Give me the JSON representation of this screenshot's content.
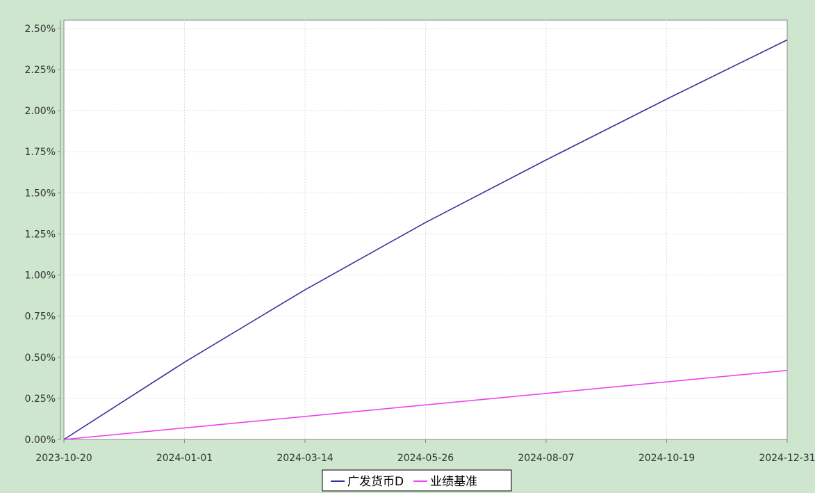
{
  "chart_data": {
    "type": "line",
    "title": "",
    "xlabel": "",
    "ylabel": "",
    "x_ticks": [
      "2023-10-20",
      "2024-01-01",
      "2024-03-14",
      "2024-05-26",
      "2024-08-07",
      "2024-10-19",
      "2024-12-31"
    ],
    "xlim": [
      "2023-10-20",
      "2024-12-31"
    ],
    "y_ticks": [
      "0.00%",
      "0.25%",
      "0.50%",
      "0.75%",
      "1.00%",
      "1.25%",
      "1.50%",
      "1.75%",
      "2.00%",
      "2.25%",
      "2.50%"
    ],
    "ylim": [
      0,
      2.55
    ],
    "y_unit": "%",
    "grid": true,
    "legend_position": "bottom-center",
    "series": [
      {
        "name": "广发货币D",
        "color": "#333399",
        "x": [
          "2023-10-20",
          "2024-01-01",
          "2024-03-14",
          "2024-05-26",
          "2024-08-07",
          "2024-10-19",
          "2024-12-31"
        ],
        "y": [
          0.0,
          0.47,
          0.91,
          1.32,
          1.7,
          2.07,
          2.43
        ]
      },
      {
        "name": "业绩基准",
        "color": "#ee44ee",
        "x": [
          "2023-10-20",
          "2024-01-01",
          "2024-03-14",
          "2024-05-26",
          "2024-08-07",
          "2024-10-19",
          "2024-12-31"
        ],
        "y": [
          0.0,
          0.07,
          0.14,
          0.21,
          0.28,
          0.35,
          0.42
        ]
      }
    ]
  }
}
